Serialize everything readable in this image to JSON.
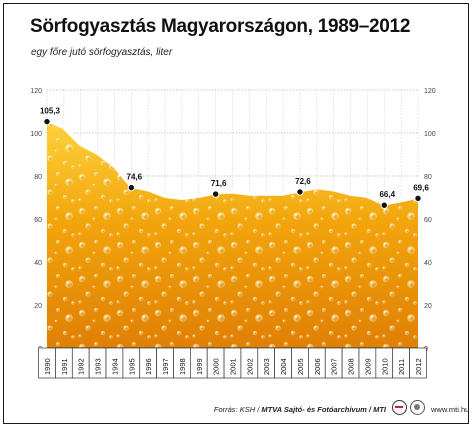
{
  "chart_data": {
    "type": "area",
    "title": "Sörfogyasztás Magyarországon, 1989–2012",
    "subtitle": "egy főre jutó sörfogyasztás, liter",
    "x": [
      "1990",
      "1991",
      "1992",
      "1993",
      "1994",
      "1995",
      "1996",
      "1997",
      "1998",
      "1999",
      "2000",
      "2001",
      "2002",
      "2003",
      "2004",
      "2005",
      "2006",
      "2007",
      "2008",
      "2009",
      "2010",
      "2011",
      "2012"
    ],
    "values": [
      105.3,
      102,
      94,
      90,
      84,
      74.6,
      73,
      70,
      69,
      70,
      71.6,
      72,
      71,
      71,
      71,
      72.6,
      74,
      73,
      71,
      70,
      66.4,
      68,
      69.6
    ],
    "labeled_points": [
      {
        "x": "1990",
        "label": "105,3"
      },
      {
        "x": "1995",
        "label": "74,6"
      },
      {
        "x": "2000",
        "label": "71,6"
      },
      {
        "x": "2005",
        "label": "72,6"
      },
      {
        "x": "2010",
        "label": "66,4"
      },
      {
        "x": "2012",
        "label": "69,6"
      }
    ],
    "ylim": [
      0,
      120
    ],
    "y_ticks": [
      "0",
      "20",
      "40",
      "60",
      "80",
      "100",
      "120"
    ],
    "grid": true,
    "fill_color": "#f2a40c",
    "fill_light_color": "#fdd23a",
    "fill_dark_color": "#e07f05"
  },
  "footer": {
    "source_prefix": "Forrás: KSH / ",
    "source_bold": "MTVA Sajtó- és Fotóarchívum / MTI",
    "website": "www.mti.hu"
  }
}
